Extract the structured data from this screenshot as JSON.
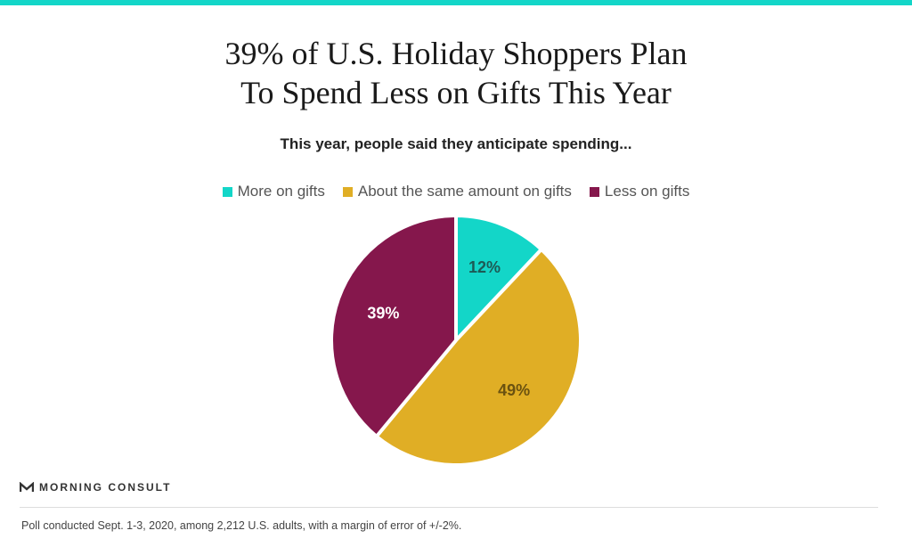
{
  "title_lines": [
    "39% of U.S. Holiday Shoppers Plan",
    "To Spend Less on Gifts This Year"
  ],
  "subtitle": "This year, people said they anticipate spending...",
  "chart_data": {
    "type": "pie",
    "categories": [
      "More on gifts",
      "About the same amount on gifts",
      "Less on gifts"
    ],
    "values": [
      12,
      49,
      39
    ],
    "data_labels": [
      "12%",
      "49%",
      "39%"
    ],
    "colors": [
      "#13d6c8",
      "#e0ae25",
      "#85174c"
    ],
    "label_colors": [
      "#1d5a55",
      "#6b5210",
      "#ffffff"
    ],
    "legend_position": "top",
    "start": "12 o'clock, clockwise"
  },
  "logo": {
    "text": "MORNING CONSULT",
    "icon": "morning-consult-m-icon"
  },
  "footnote": "Poll conducted Sept. 1-3, 2020, among 2,212 U.S. adults, with a margin of error of +/-2%."
}
